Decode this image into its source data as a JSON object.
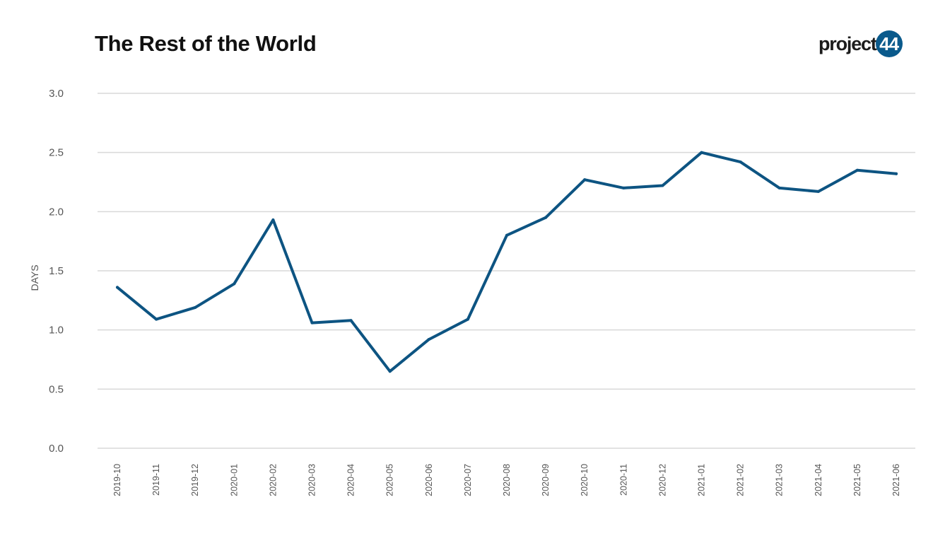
{
  "logo": {
    "text": "project",
    "badge": "44"
  },
  "colors": {
    "line": "#0d5482",
    "grid": "#d9d9d9",
    "logo_badge": "#0a5a8c"
  },
  "chart_data": {
    "type": "line",
    "title": "The Rest of the World",
    "xlabel": "",
    "ylabel": "DAYS",
    "ylim": [
      0,
      3
    ],
    "yticks": [
      "0.0",
      "0.5",
      "1.0",
      "1.5",
      "2.0",
      "2.5",
      "3.0"
    ],
    "grid": true,
    "x": [
      "2019-10",
      "2019-11",
      "2019-12",
      "2020-01",
      "2020-02",
      "2020-03",
      "2020-04",
      "2020-05",
      "2020-06",
      "2020-07",
      "2020-08",
      "2020-09",
      "2020-10",
      "2020-11",
      "2020-12",
      "2021-01",
      "2021-02",
      "2021-03",
      "2021-04",
      "2021-05",
      "2021-06"
    ],
    "series": [
      {
        "values": [
          1.36,
          1.09,
          1.19,
          1.39,
          1.93,
          1.06,
          1.08,
          0.65,
          0.92,
          1.09,
          1.8,
          1.95,
          2.27,
          2.2,
          2.22,
          2.5,
          2.42,
          2.2,
          2.17,
          2.35,
          2.32
        ]
      }
    ]
  }
}
